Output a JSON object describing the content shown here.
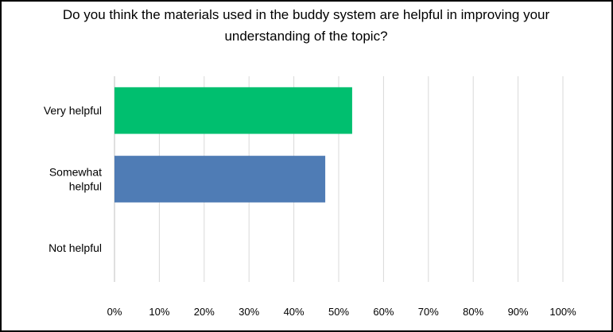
{
  "chart_data": {
    "type": "bar",
    "orientation": "horizontal",
    "title": "Do you think the materials used in the buddy system are helpful in improving your understanding of the topic?",
    "title_lines": [
      "Do you think the materials used in the buddy system are helpful in improving your",
      "understanding of the topic?"
    ],
    "categories": [
      {
        "label_lines": [
          "Very helpful"
        ],
        "value": 0.53,
        "color": "#00bf6f"
      },
      {
        "label_lines": [
          "Somewhat",
          "helpful"
        ],
        "value": 0.47,
        "color": "#4f7cb5"
      },
      {
        "label_lines": [
          "Not helpful"
        ],
        "value": 0,
        "color": "#4f7cb5"
      }
    ],
    "xlim": [
      0,
      1
    ],
    "x_ticks": [
      "0%",
      "10%",
      "20%",
      "30%",
      "40%",
      "50%",
      "60%",
      "70%",
      "80%",
      "90%",
      "100%"
    ],
    "grid": true,
    "legend": "none"
  }
}
